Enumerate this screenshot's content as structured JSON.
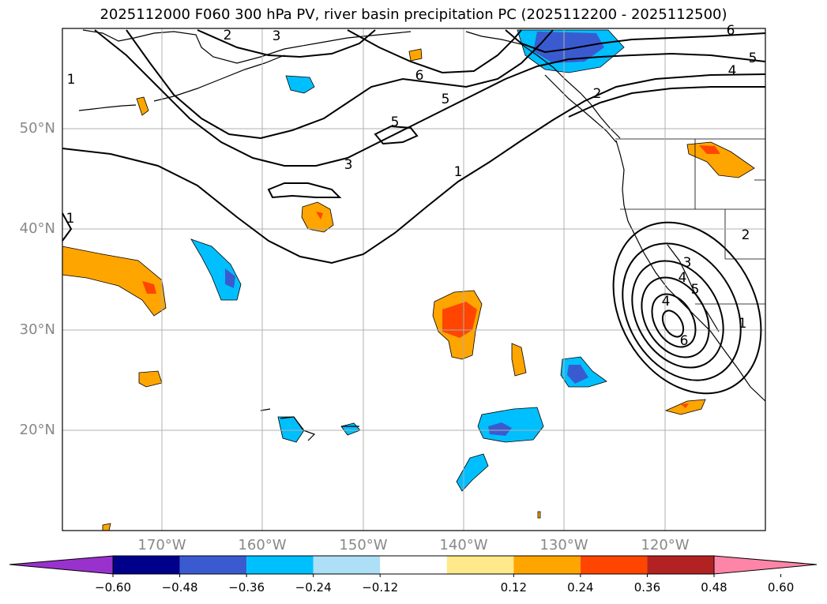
{
  "title": "2025112000 F060 300 hPa PV, river basin precipitation PC (2025112200 - 2025112500)",
  "lat_labels": [
    "50°N",
    "40°N",
    "30°N",
    "20°N"
  ],
  "lon_labels": [
    "170°W",
    "160°W",
    "150°W",
    "140°W",
    "130°W",
    "120°W"
  ],
  "contour_labels": [
    "1",
    "2",
    "3",
    "4",
    "5",
    "6",
    "5",
    "6",
    "5",
    "4",
    "2",
    "1",
    "3",
    "1",
    "2",
    "3",
    "4",
    "5",
    "6",
    "1"
  ],
  "colorbar": {
    "ticks": [
      "−0.60",
      "−0.48",
      "−0.36",
      "−0.24",
      "−0.12",
      "0.12",
      "0.24",
      "0.36",
      "0.48",
      "0.60"
    ],
    "colors": [
      "#9932CC",
      "#00008B",
      "#3A5BD0",
      "#00BFFF",
      "#ADDFF7",
      "#FFFFFF",
      "#FFE98A",
      "#FFA500",
      "#FF4500",
      "#B22222",
      "#FF85A8"
    ]
  }
}
